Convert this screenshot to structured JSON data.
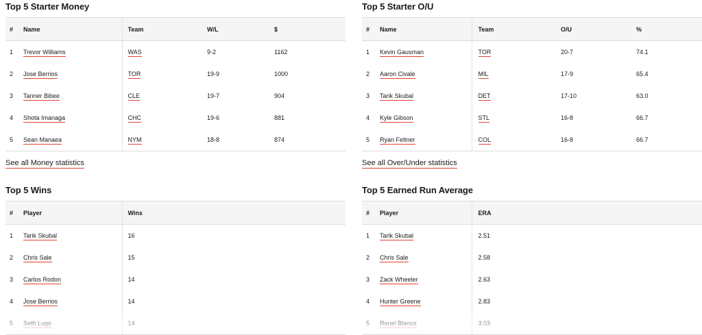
{
  "colors": {
    "underline": "#e2402f",
    "header_bg": "#f5f5f5",
    "border": "#dcdcdc"
  },
  "money": {
    "title": "Top 5 Starter Money",
    "headers": [
      "#",
      "Name",
      "Team",
      "W/L",
      "$"
    ],
    "rows": [
      {
        "rank": "1",
        "name": "Trevor Williams",
        "team": "WAS",
        "wl": "9-2",
        "val": "1162"
      },
      {
        "rank": "2",
        "name": "Jose Berrios",
        "team": "TOR",
        "wl": "19-9",
        "val": "1000"
      },
      {
        "rank": "3",
        "name": "Tanner Bibee",
        "team": "CLE",
        "wl": "19-7",
        "val": "904"
      },
      {
        "rank": "4",
        "name": "Shota Imanaga",
        "team": "CHC",
        "wl": "19-6",
        "val": "881"
      },
      {
        "rank": "5",
        "name": "Sean Manaea",
        "team": "NYM",
        "wl": "18-8",
        "val": "874"
      }
    ],
    "see_all": "See all Money statistics"
  },
  "ou": {
    "title": "Top 5 Starter O/U",
    "headers": [
      "#",
      "Name",
      "Team",
      "O/U",
      "%"
    ],
    "rows": [
      {
        "rank": "1",
        "name": "Kevin Gausman",
        "team": "TOR",
        "ou": "20-7",
        "pct": "74.1"
      },
      {
        "rank": "2",
        "name": "Aaron Civale",
        "team": "MIL",
        "ou": "17-9",
        "pct": "65.4"
      },
      {
        "rank": "3",
        "name": "Tarik Skubal",
        "team": "DET",
        "ou": "17-10",
        "pct": "63.0"
      },
      {
        "rank": "4",
        "name": "Kyle Gibson",
        "team": "STL",
        "ou": "16-8",
        "pct": "66.7"
      },
      {
        "rank": "5",
        "name": "Ryan Feltner",
        "team": "COL",
        "ou": "16-8",
        "pct": "66.7"
      }
    ],
    "see_all": "See all Over/Under statistics"
  },
  "wins": {
    "title": "Top 5 Wins",
    "headers": [
      "#",
      "Player",
      "Wins"
    ],
    "rows": [
      {
        "rank": "1",
        "name": "Tarik Skubal",
        "val": "16"
      },
      {
        "rank": "2",
        "name": "Chris Sale",
        "val": "15"
      },
      {
        "rank": "3",
        "name": "Carlos Rodon",
        "val": "14"
      },
      {
        "rank": "4",
        "name": "Jose Berrios",
        "val": "14"
      },
      {
        "rank": "5",
        "name": "Seth Lugo",
        "val": "14"
      }
    ]
  },
  "era": {
    "title": "Top 5 Earned Run Average",
    "headers": [
      "#",
      "Player",
      "ERA"
    ],
    "rows": [
      {
        "rank": "1",
        "name": "Tarik Skubal",
        "val": "2.51"
      },
      {
        "rank": "2",
        "name": "Chris Sale",
        "val": "2.58"
      },
      {
        "rank": "3",
        "name": "Zack Wheeler",
        "val": "2.63"
      },
      {
        "rank": "4",
        "name": "Hunter Greene",
        "val": "2.83"
      },
      {
        "rank": "5",
        "name": "Ronel Blanco",
        "val": "3.03"
      }
    ]
  }
}
